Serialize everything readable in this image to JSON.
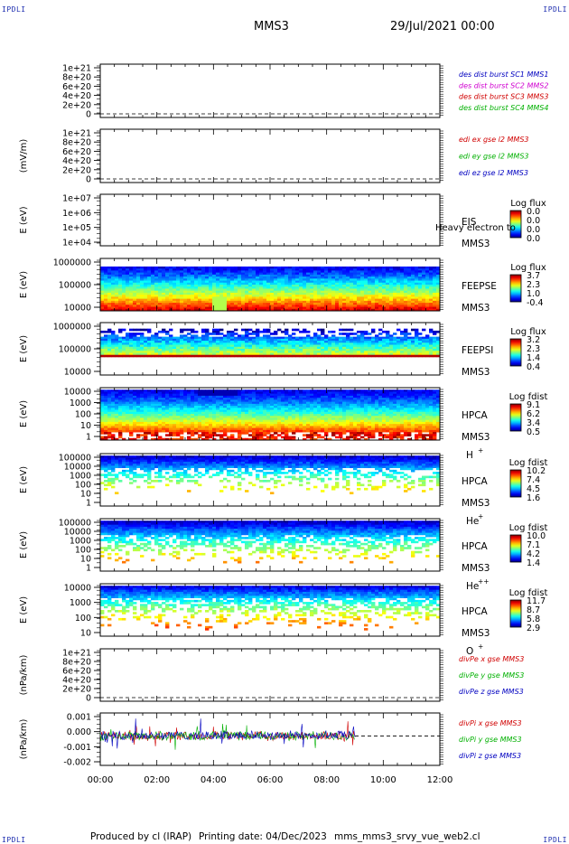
{
  "corner_label": "IPDLI",
  "header": {
    "spacecraft": "MMS3",
    "date": "29/Jul/2021 00:00"
  },
  "footer": {
    "produced": "Produced by cl (IRAP)",
    "printing": "Printing date: 04/Dec/2023",
    "script": "mms_mms3_srvy_vue_web2.cl"
  },
  "chart_data": [
    {
      "type": "line",
      "panel": "dist",
      "ylabel": "",
      "yticks": [
        "1e+21",
        "8e+20",
        "6e+20",
        "4e+20",
        "2e+20",
        "0"
      ],
      "ylim": [
        0,
        1.1e+21
      ],
      "legend": [
        {
          "name": "des dist burst SC1 MMS1",
          "color": "#0000c0"
        },
        {
          "name": "des dist burst SC2 MMS2",
          "color": "#d000d0"
        },
        {
          "name": "des dist burst SC3 MMS3",
          "color": "#d00000"
        },
        {
          "name": "des dist burst SC4 MMS4",
          "color": "#00b000"
        }
      ]
    },
    {
      "type": "line",
      "panel": "edi",
      "ylabel": "(mV/m)",
      "yticks": [
        "1e+21",
        "8e+20",
        "6e+20",
        "4e+20",
        "2e+20",
        "0"
      ],
      "ylim": [
        0,
        1.1e+21
      ],
      "legend": [
        {
          "name": "edi ex gse l2 MMS3",
          "color": "#d00000"
        },
        {
          "name": "edi ey gse l2 MMS3",
          "color": "#00b000"
        },
        {
          "name": "edi ez gse l2 MMS3",
          "color": "#0000c0"
        }
      ]
    },
    {
      "type": "heatmap",
      "panel": "eis",
      "ylabel": "E (eV)",
      "yticks": [
        "1e+07",
        "1e+06",
        "1e+05",
        "1e+04"
      ],
      "instrument": "EIS",
      "overlay": "Heavy electron to",
      "sc": "MMS3",
      "cbar_title": "Log flux",
      "cbar_ticks": [
        "0.0",
        "0.0",
        "0.0",
        "0.0"
      ]
    },
    {
      "type": "heatmap",
      "panel": "feepse",
      "ylabel": "E (eV)",
      "yticks": [
        "1000000",
        "100000",
        "10000"
      ],
      "instrument": "FEEPSE",
      "sc": "MMS3",
      "cbar_title": "Log flux",
      "cbar_ticks": [
        "3.7",
        "2.3",
        "1.0",
        "-0.4"
      ]
    },
    {
      "type": "heatmap",
      "panel": "feepsi",
      "ylabel": "E (eV)",
      "yticks": [
        "1000000",
        "100000",
        "10000"
      ],
      "instrument": "FEEPSI",
      "sc": "MMS3",
      "cbar_title": "Log flux",
      "cbar_ticks": [
        "3.2",
        "2.3",
        "1.4",
        "0.4"
      ]
    },
    {
      "type": "heatmap",
      "panel": "hpca_h",
      "ylabel": "E (eV)",
      "yticks": [
        "10000",
        "1000",
        "100",
        "10",
        "1"
      ],
      "instrument": "HPCA",
      "sc": "MMS3",
      "species": "H",
      "charge": "+",
      "cbar_title": "Log fdist",
      "cbar_ticks": [
        "9.1",
        "6.2",
        "3.4",
        "0.5"
      ]
    },
    {
      "type": "heatmap",
      "panel": "hpca_he1",
      "ylabel": "E (eV)",
      "yticks": [
        "100000",
        "10000",
        "1000",
        "100",
        "10",
        "1"
      ],
      "instrument": "HPCA",
      "sc": "MMS3",
      "species": "He",
      "charge": "+",
      "cbar_title": "Log fdist",
      "cbar_ticks": [
        "10.2",
        "7.4",
        "4.5",
        "1.6"
      ]
    },
    {
      "type": "heatmap",
      "panel": "hpca_he2",
      "ylabel": "E (eV)",
      "yticks": [
        "100000",
        "10000",
        "1000",
        "100",
        "10",
        "1"
      ],
      "instrument": "HPCA",
      "sc": "MMS3",
      "species": "He",
      "charge": "++",
      "cbar_title": "Log fdist",
      "cbar_ticks": [
        "10.0",
        "7.1",
        "4.2",
        "1.4"
      ]
    },
    {
      "type": "heatmap",
      "panel": "hpca_o",
      "ylabel": "E (eV)",
      "yticks": [
        "10000",
        "1000",
        "100",
        "10"
      ],
      "instrument": "HPCA",
      "sc": "MMS3",
      "species": "O",
      "charge": "+",
      "cbar_title": "Log fdist",
      "cbar_ticks": [
        "11.7",
        "8.7",
        "5.8",
        "2.9"
      ]
    },
    {
      "type": "line",
      "panel": "divpe",
      "ylabel": "(nPa/km)",
      "yticks": [
        "1e+21",
        "8e+20",
        "6e+20",
        "4e+20",
        "2e+20",
        "0"
      ],
      "ylim": [
        0,
        1.1e+21
      ],
      "legend": [
        {
          "name": "divPe x gse MMS3",
          "color": "#d00000"
        },
        {
          "name": "divPe y gse MMS3",
          "color": "#00b000"
        },
        {
          "name": "divPe z gse MMS3",
          "color": "#0000c0"
        }
      ]
    },
    {
      "type": "line",
      "panel": "divpi",
      "ylabel": "(nPa/km)",
      "yticks": [
        "0.001",
        "0.000",
        "-0.001",
        "-0.002"
      ],
      "ylim": [
        -0.002,
        0.0015
      ],
      "data_end": "09:00",
      "legend": [
        {
          "name": "divPi x gse MMS3",
          "color": "#d00000"
        },
        {
          "name": "divPi y gse MMS3",
          "color": "#00b000"
        },
        {
          "name": "divPi z gse MMS3",
          "color": "#0000c0"
        }
      ]
    }
  ],
  "xaxis": {
    "ticks": [
      "00:00",
      "02:00",
      "04:00",
      "06:00",
      "08:00",
      "10:00",
      "12:00"
    ],
    "range": [
      "00:00",
      "12:00"
    ]
  }
}
